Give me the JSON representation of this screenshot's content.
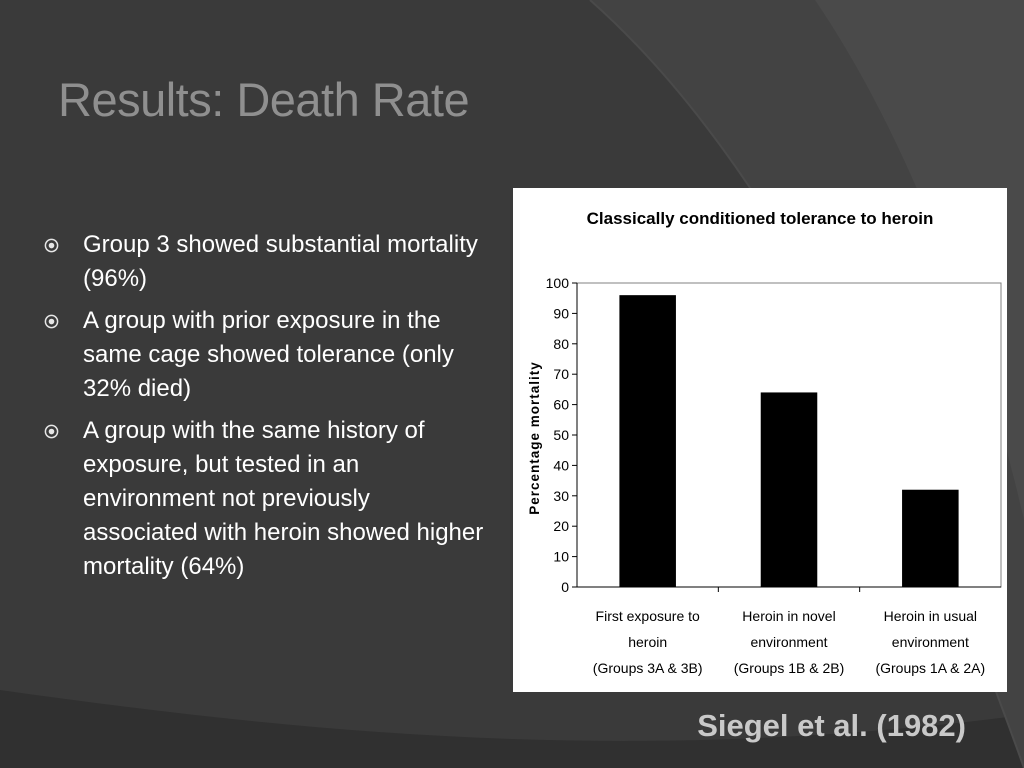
{
  "slide": {
    "title": "Results: Death Rate",
    "bullets": [
      "Group 3 showed substantial mortality (96%)",
      "A group with prior exposure in the same cage showed tolerance (only 32% died)",
      "A group with the same history of exposure, but tested in an environment not previously associated with heroin showed higher mortality (64%)"
    ],
    "citation": "Siegel et al. (1982)"
  },
  "colors": {
    "background": "#3a3a3a",
    "title": "#8f8f8f",
    "bullet_text": "#ffffff",
    "citation": "#c9c9c9",
    "bar": "#000000"
  },
  "icons": {
    "bullet": "circled-dot-icon"
  },
  "chart_data": {
    "type": "bar",
    "title": "Classically conditioned tolerance to heroin",
    "xlabel": "",
    "ylabel": "Percentage mortality",
    "ylim": [
      0,
      100
    ],
    "yticks": [
      0,
      10,
      20,
      30,
      40,
      50,
      60,
      70,
      80,
      90,
      100
    ],
    "categories": [
      [
        "First exposure to",
        "heroin",
        "(Groups 3A & 3B)"
      ],
      [
        "Heroin in novel",
        "environment",
        "(Groups 1B & 2B)"
      ],
      [
        "Heroin in usual",
        "environment",
        "(Groups 1A & 2A)"
      ]
    ],
    "values": [
      96,
      64,
      32
    ],
    "grid": false,
    "legend": "none"
  }
}
